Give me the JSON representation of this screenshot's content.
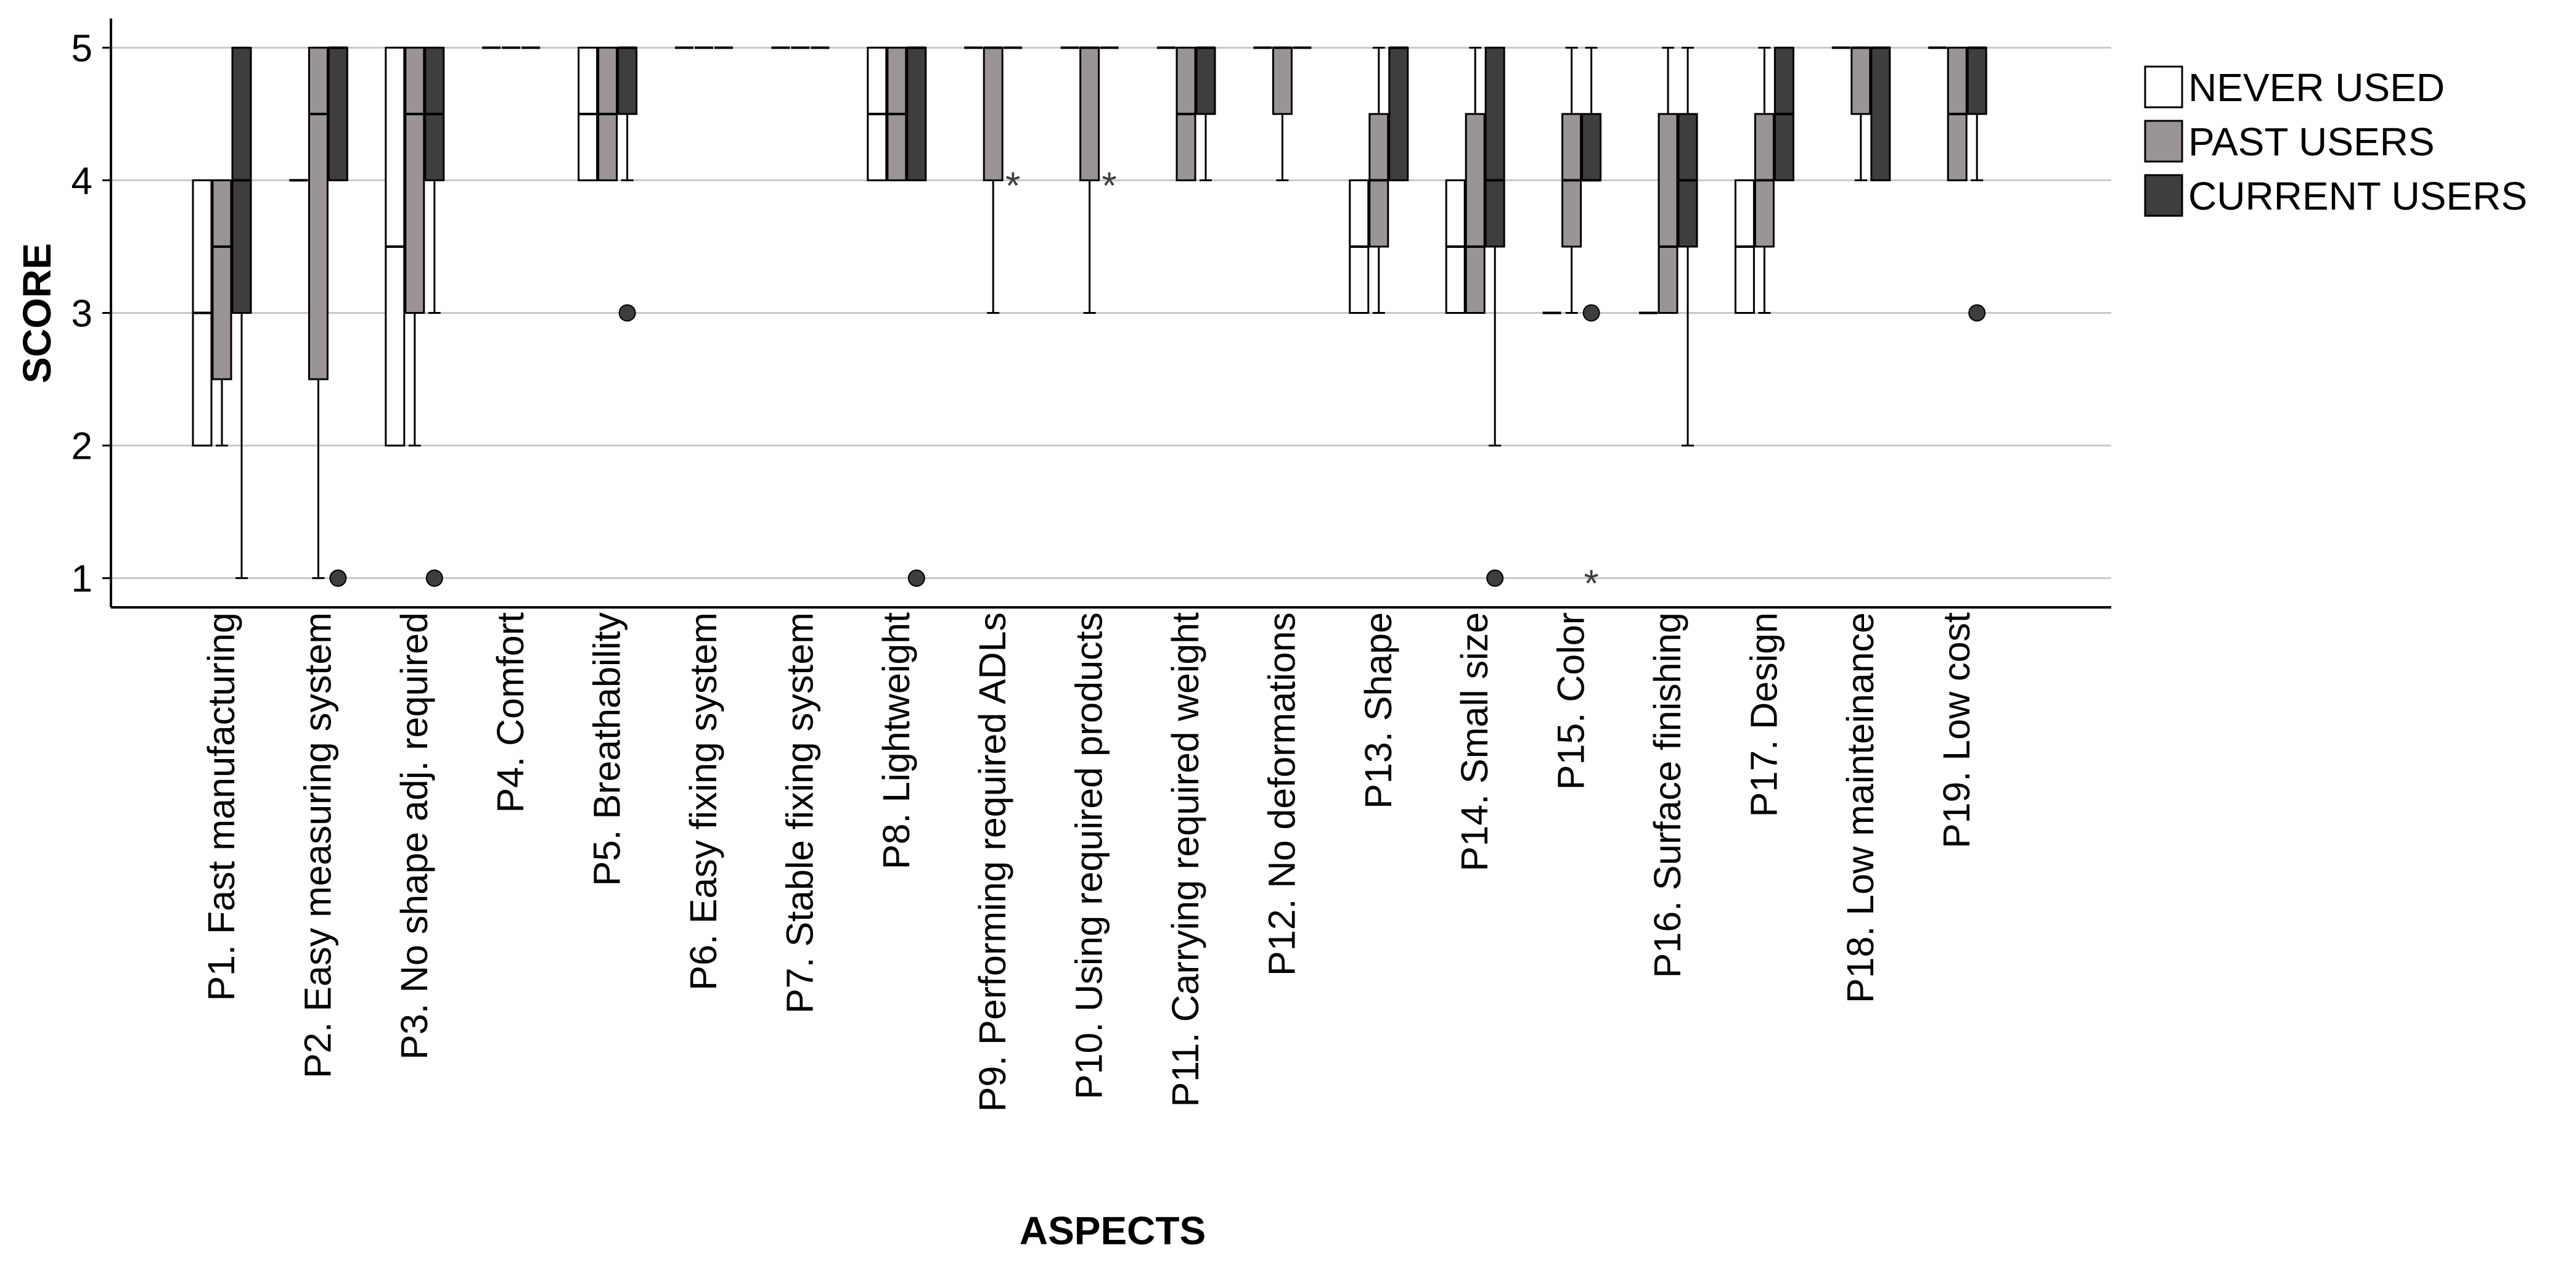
{
  "colors": {
    "never_used": "#ffffff",
    "past_users": "#9a9494",
    "current_users": "#3e3e3e",
    "outline": "#000000",
    "grid": "#c8c8c8",
    "outlier": "#3e3e3e"
  },
  "chart_data": {
    "type": "boxplot",
    "title": "",
    "xlabel": "ASPECTS",
    "ylabel": "SCORE",
    "ylim": [
      0.78,
      5.22
    ],
    "yticks": [
      1,
      2,
      3,
      4,
      5
    ],
    "grid": "horizontal",
    "legend_position": "top-right",
    "categories": [
      "P1. Fast manufacturing",
      "P2. Easy measuring system",
      "P3. No shape adj. required",
      "P4. Comfort",
      "P5. Breathability",
      "P6. Easy fixing system",
      "P7. Stable fixing system",
      "P8. Lightweight",
      "P9. Performing required ADLs",
      "P10. Using required products",
      "P11. Carrying required weight",
      "P12. No deformations",
      "P13. Shape",
      "P14. Small size",
      "P15. Color",
      "P16. Surface finishing",
      "P17. Design",
      "P18. Low mainteinance",
      "P19. Low cost"
    ],
    "series": [
      {
        "name": "NEVER USED",
        "color_key": "never_used",
        "boxes": [
          {
            "min": 2,
            "q1": 2,
            "median": 3,
            "q3": 4,
            "max": 4,
            "outliers": []
          },
          {
            "min": 4,
            "q1": 4,
            "median": 4,
            "q3": 4,
            "max": 4,
            "outliers": []
          },
          {
            "min": 2,
            "q1": 2,
            "median": 3.5,
            "q3": 5,
            "max": 5,
            "outliers": []
          },
          {
            "min": 5,
            "q1": 5,
            "median": 5,
            "q3": 5,
            "max": 5,
            "outliers": []
          },
          {
            "min": 4,
            "q1": 4,
            "median": 4.5,
            "q3": 5,
            "max": 5,
            "outliers": []
          },
          {
            "min": 5,
            "q1": 5,
            "median": 5,
            "q3": 5,
            "max": 5,
            "outliers": []
          },
          {
            "min": 5,
            "q1": 5,
            "median": 5,
            "q3": 5,
            "max": 5,
            "outliers": []
          },
          {
            "min": 4,
            "q1": 4,
            "median": 4.5,
            "q3": 5,
            "max": 5,
            "outliers": []
          },
          {
            "min": 5,
            "q1": 5,
            "median": 5,
            "q3": 5,
            "max": 5,
            "outliers": []
          },
          {
            "min": 5,
            "q1": 5,
            "median": 5,
            "q3": 5,
            "max": 5,
            "outliers": []
          },
          {
            "min": 5,
            "q1": 5,
            "median": 5,
            "q3": 5,
            "max": 5,
            "outliers": []
          },
          {
            "min": 5,
            "q1": 5,
            "median": 5,
            "q3": 5,
            "max": 5,
            "outliers": []
          },
          {
            "min": 3,
            "q1": 3,
            "median": 3.5,
            "q3": 4,
            "max": 4,
            "outliers": []
          },
          {
            "min": 3,
            "q1": 3,
            "median": 3.5,
            "q3": 4,
            "max": 4,
            "outliers": []
          },
          {
            "min": 3,
            "q1": 3,
            "median": 3,
            "q3": 3,
            "max": 3,
            "outliers": []
          },
          {
            "min": 3,
            "q1": 3,
            "median": 3,
            "q3": 3,
            "max": 3,
            "outliers": []
          },
          {
            "min": 3,
            "q1": 3,
            "median": 3.5,
            "q3": 4,
            "max": 4,
            "outliers": []
          },
          {
            "min": 5,
            "q1": 5,
            "median": 5,
            "q3": 5,
            "max": 5,
            "outliers": []
          },
          {
            "min": 5,
            "q1": 5,
            "median": 5,
            "q3": 5,
            "max": 5,
            "outliers": []
          }
        ]
      },
      {
        "name": "PAST USERS",
        "color_key": "past_users",
        "boxes": [
          {
            "min": 2,
            "q1": 2.5,
            "median": 3.5,
            "q3": 4,
            "max": 4,
            "outliers": []
          },
          {
            "min": 1,
            "q1": 2.5,
            "median": 4.5,
            "q3": 5,
            "max": 5,
            "outliers": []
          },
          {
            "min": 2,
            "q1": 3,
            "median": 4.5,
            "q3": 5,
            "max": 5,
            "outliers": []
          },
          {
            "min": 5,
            "q1": 5,
            "median": 5,
            "q3": 5,
            "max": 5,
            "outliers": []
          },
          {
            "min": 4,
            "q1": 4,
            "median": 4.5,
            "q3": 5,
            "max": 5,
            "outliers": []
          },
          {
            "min": 5,
            "q1": 5,
            "median": 5,
            "q3": 5,
            "max": 5,
            "outliers": []
          },
          {
            "min": 5,
            "q1": 5,
            "median": 5,
            "q3": 5,
            "max": 5,
            "outliers": []
          },
          {
            "min": 4,
            "q1": 4,
            "median": 4.5,
            "q3": 5,
            "max": 5,
            "outliers": []
          },
          {
            "min": 3,
            "q1": 4,
            "median": 5,
            "q3": 5,
            "max": 5,
            "outliers": []
          },
          {
            "min": 3,
            "q1": 4,
            "median": 5,
            "q3": 5,
            "max": 5,
            "outliers": []
          },
          {
            "min": 4,
            "q1": 4,
            "median": 4.5,
            "q3": 5,
            "max": 5,
            "outliers": []
          },
          {
            "min": 4,
            "q1": 4.5,
            "median": 5,
            "q3": 5,
            "max": 5,
            "outliers": []
          },
          {
            "min": 3,
            "q1": 3.5,
            "median": 4,
            "q3": 4.5,
            "max": 5,
            "outliers": []
          },
          {
            "min": 3,
            "q1": 3,
            "median": 3.5,
            "q3": 4.5,
            "max": 5,
            "outliers": []
          },
          {
            "min": 3,
            "q1": 3.5,
            "median": 4,
            "q3": 4.5,
            "max": 5,
            "outliers": []
          },
          {
            "min": 3,
            "q1": 3,
            "median": 3.5,
            "q3": 4.5,
            "max": 5,
            "outliers": []
          },
          {
            "min": 3,
            "q1": 3.5,
            "median": 4,
            "q3": 4.5,
            "max": 5,
            "outliers": []
          },
          {
            "min": 4,
            "q1": 4.5,
            "median": 5,
            "q3": 5,
            "max": 5,
            "outliers": []
          },
          {
            "min": 4,
            "q1": 4,
            "median": 4.5,
            "q3": 5,
            "max": 5,
            "outliers": []
          }
        ]
      },
      {
        "name": "CURRENT USERS",
        "color_key": "current_users",
        "boxes": [
          {
            "min": 1,
            "q1": 3,
            "median": 4,
            "q3": 5,
            "max": 5,
            "outliers": []
          },
          {
            "min": 4,
            "q1": 4,
            "median": 5,
            "q3": 5,
            "max": 5,
            "outliers": [
              {
                "value": 1,
                "marker": "circle"
              }
            ]
          },
          {
            "min": 3,
            "q1": 4,
            "median": 4.5,
            "q3": 5,
            "max": 5,
            "outliers": [
              {
                "value": 1,
                "marker": "circle"
              }
            ]
          },
          {
            "min": 5,
            "q1": 5,
            "median": 5,
            "q3": 5,
            "max": 5,
            "outliers": []
          },
          {
            "min": 4,
            "q1": 4.5,
            "median": 5,
            "q3": 5,
            "max": 5,
            "outliers": [
              {
                "value": 3,
                "marker": "circle"
              }
            ]
          },
          {
            "min": 5,
            "q1": 5,
            "median": 5,
            "q3": 5,
            "max": 5,
            "outliers": []
          },
          {
            "min": 5,
            "q1": 5,
            "median": 5,
            "q3": 5,
            "max": 5,
            "outliers": []
          },
          {
            "min": 4,
            "q1": 4,
            "median": 5,
            "q3": 5,
            "max": 5,
            "outliers": [
              {
                "value": 1,
                "marker": "circle"
              }
            ]
          },
          {
            "min": 5,
            "q1": 5,
            "median": 5,
            "q3": 5,
            "max": 5,
            "outliers": [
              {
                "value": 4,
                "marker": "star"
              }
            ]
          },
          {
            "min": 5,
            "q1": 5,
            "median": 5,
            "q3": 5,
            "max": 5,
            "outliers": [
              {
                "value": 4,
                "marker": "star"
              }
            ]
          },
          {
            "min": 4,
            "q1": 4.5,
            "median": 5,
            "q3": 5,
            "max": 5,
            "outliers": []
          },
          {
            "min": 5,
            "q1": 5,
            "median": 5,
            "q3": 5,
            "max": 5,
            "outliers": []
          },
          {
            "min": 4,
            "q1": 4,
            "median": 5,
            "q3": 5,
            "max": 5,
            "outliers": []
          },
          {
            "min": 2,
            "q1": 3.5,
            "median": 4,
            "q3": 5,
            "max": 5,
            "outliers": [
              {
                "value": 1,
                "marker": "circle"
              }
            ]
          },
          {
            "min": 4,
            "q1": 4,
            "median": 4,
            "q3": 4.5,
            "max": 5,
            "outliers": [
              {
                "value": 3,
                "marker": "circle"
              },
              {
                "value": 1,
                "marker": "star"
              }
            ]
          },
          {
            "min": 2,
            "q1": 3.5,
            "median": 4,
            "q3": 4.5,
            "max": 5,
            "outliers": []
          },
          {
            "min": 4,
            "q1": 4,
            "median": 4.5,
            "q3": 5,
            "max": 5,
            "outliers": []
          },
          {
            "min": 4,
            "q1": 4,
            "median": 5,
            "q3": 5,
            "max": 5,
            "outliers": []
          },
          {
            "min": 4,
            "q1": 4.5,
            "median": 5,
            "q3": 5,
            "max": 5,
            "outliers": [
              {
                "value": 3,
                "marker": "circle"
              }
            ]
          }
        ]
      }
    ]
  }
}
